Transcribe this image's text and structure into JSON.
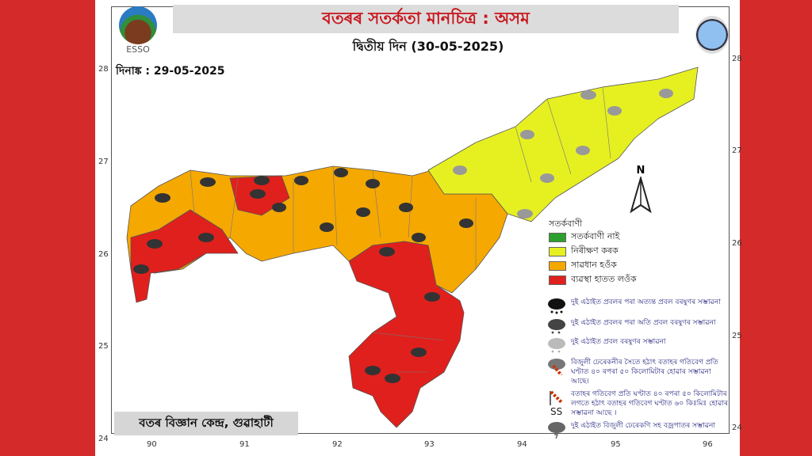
{
  "header": {
    "title": "বতৰৰ সতৰ্কতা মানচিত্ৰ : অসম",
    "subtitle": "দ্বিতীয় দিন  (30-05-2025)",
    "issue_date": "দিনাঙ্ক : 29-05-2025",
    "logo_left": "ESSO"
  },
  "footer": {
    "office": "বতৰ বিজ্ঞান কেন্দ্ৰ, গুৱাহাটী"
  },
  "axes": {
    "lat_ticks": [
      "28",
      "27",
      "26",
      "25",
      "24"
    ],
    "lon_ticks": [
      "90",
      "91",
      "92",
      "93",
      "94",
      "95",
      "96"
    ]
  },
  "compass": "N",
  "legend": {
    "title": "সতৰ্কবাণী",
    "levels": [
      {
        "label": "সতৰ্কবাণী নাই",
        "color": "#2ca02c"
      },
      {
        "label": "নিৰীক্ষণ কৰক",
        "color": "#e6f021"
      },
      {
        "label": "সাৱধান হওঁক",
        "color": "#f5a800"
      },
      {
        "label": "ব্যৱস্থা হাতত লওঁক",
        "color": "#e0201c"
      }
    ],
    "icons": [
      {
        "icon": "extremely-heavy-rain-icon",
        "text": "দুই এঠাইত প্ৰবলৰ পৰা অত্যন্ত প্ৰবল বৰষুণৰ সম্ভাৱনা"
      },
      {
        "icon": "very-heavy-rain-icon",
        "text": "দুই এঠাইত প্ৰবলৰ পৰা অতি প্ৰবল বৰষুণৰ সম্ভাৱনা"
      },
      {
        "icon": "heavy-rain-icon",
        "text": "দুই এঠাইত প্ৰবল বৰষুণৰ সম্ভাৱনা"
      },
      {
        "icon": "thunderstorm-gusty-wind-icon",
        "text": "বিজুলী ঢেৰেকনীৰ সৈতে হঠাৎ বতাহৰ গতিবেগ প্ৰতি ঘণ্টাত ৪০ ৰপৰা ৫০ কিলোমিটাৰ হোৱাৰ সম্ভাৱনা আছে।"
      },
      {
        "icon": "strong-wind-icon",
        "text": "বতাহৰ গতিবেগ প্ৰতি ঘণ্টাত ৪০ ৰপৰা ৫০ কিলোমিটাৰ লগতে হঠাৎ বতাহৰ গতিবেগ ঘণ্টাত ৬০ কিঃমিঃ হোৱাৰ সম্ভাৱনা আছে ।"
      },
      {
        "icon": "thunderstorm-lightning-icon",
        "text": "দুই এঠাইত বিজুলী ঢেৰেকণি সহ বজ্ৰপাতৰ সম্ভাৱনা"
      }
    ]
  }
}
